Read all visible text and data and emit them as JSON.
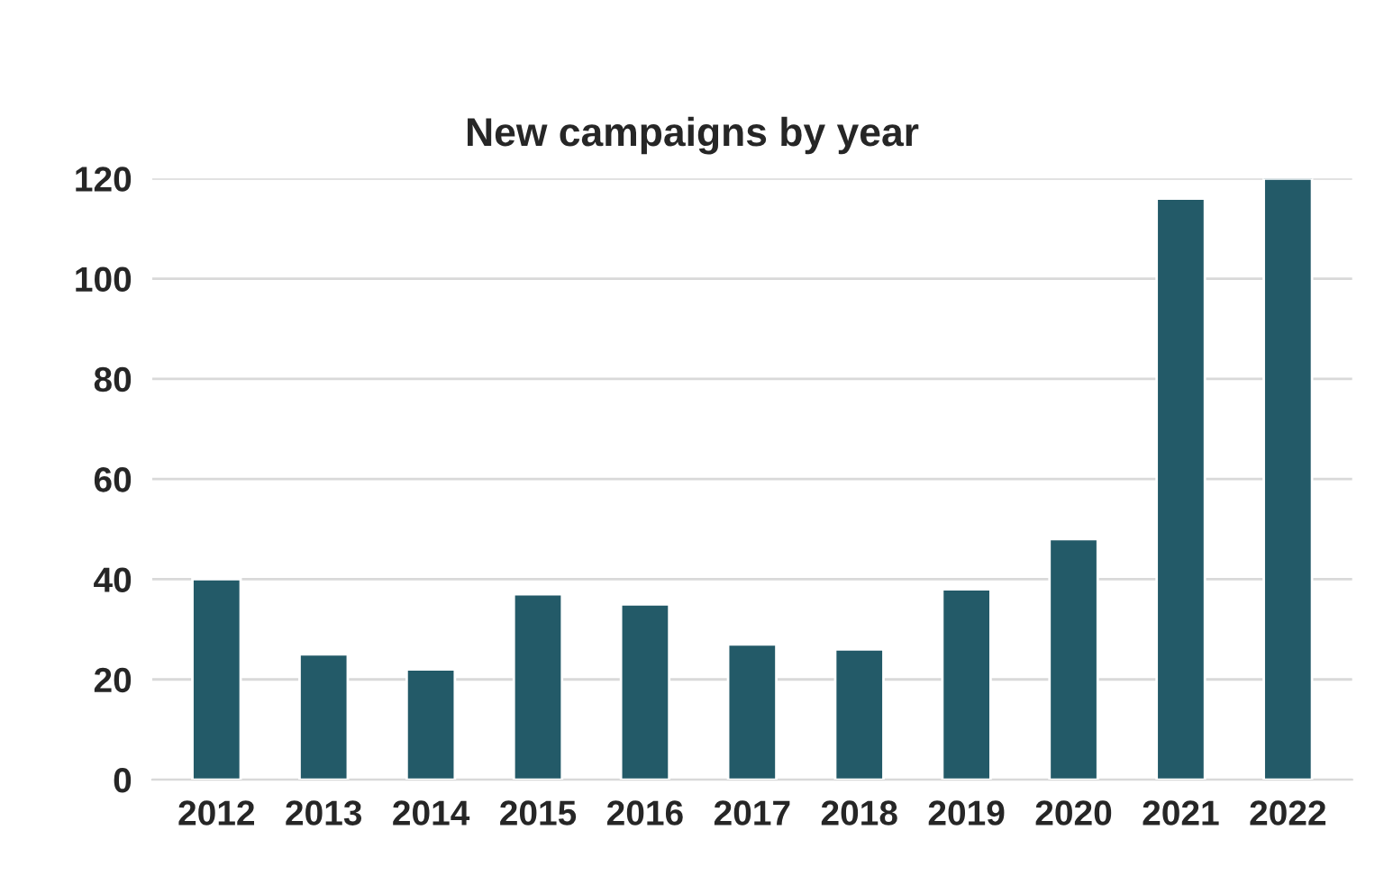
{
  "chart_data": {
    "type": "bar",
    "title": "New campaigns by year",
    "categories": [
      "2012",
      "2013",
      "2014",
      "2015",
      "2016",
      "2017",
      "2018",
      "2019",
      "2020",
      "2021",
      "2022"
    ],
    "values": [
      40,
      25,
      22,
      37,
      35,
      27,
      26,
      38,
      48,
      116,
      120
    ],
    "color": "#235a68",
    "ylim": [
      0,
      120
    ],
    "yticks": [
      0,
      20,
      40,
      60,
      80,
      100,
      120
    ],
    "grid": "y",
    "legend": false
  }
}
